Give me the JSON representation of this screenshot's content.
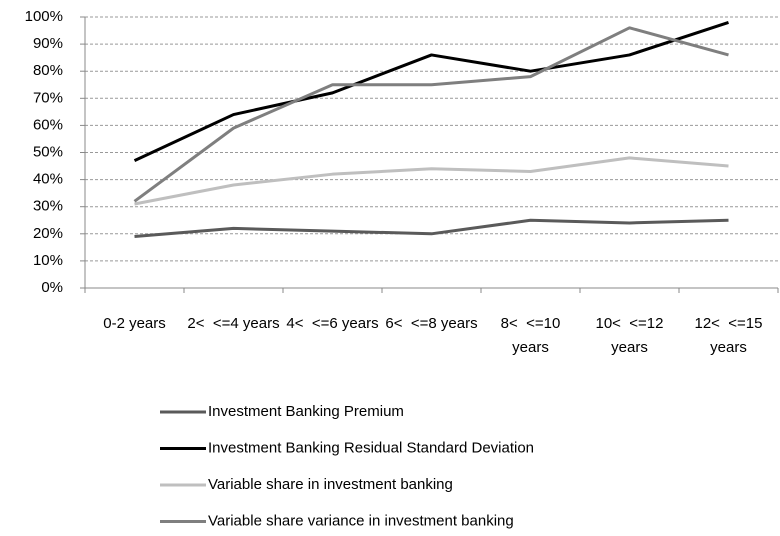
{
  "chart_data": {
    "type": "line",
    "categories": [
      "0-2 years",
      "2<  <=4 years",
      "4<  <=6 years",
      "6<  <=8 years",
      "8<  <=10 years",
      "10<  <=12 years",
      "12<  <=15 years"
    ],
    "series": [
      {
        "name": "Investment Banking Premium",
        "color": "#5a5a5a",
        "values": [
          19,
          22,
          21,
          20,
          25,
          24,
          25
        ]
      },
      {
        "name": "Investment Banking Residual Standard Deviation",
        "color": "#000000",
        "values": [
          47,
          64,
          72,
          86,
          80,
          86,
          98
        ]
      },
      {
        "name": "Variable share in investment banking",
        "color": "#bfbfbf",
        "values": [
          31,
          38,
          42,
          44,
          43,
          48,
          45
        ]
      },
      {
        "name": "Variable share variance in investment banking",
        "color": "#7f7f7f",
        "values": [
          32,
          59,
          75,
          75,
          78,
          96,
          86
        ]
      }
    ],
    "ylim": [
      0,
      100
    ],
    "yticks": [
      {
        "value": 0,
        "label": "0%"
      },
      {
        "value": 10,
        "label": "10%"
      },
      {
        "value": 20,
        "label": "20%"
      },
      {
        "value": 30,
        "label": "30%"
      },
      {
        "value": 40,
        "label": "40%"
      },
      {
        "value": 50,
        "label": "50%"
      },
      {
        "value": 60,
        "label": "60%"
      },
      {
        "value": 70,
        "label": "70%"
      },
      {
        "value": 80,
        "label": "80%"
      },
      {
        "value": 90,
        "label": "90%"
      },
      {
        "value": 100,
        "label": "100%"
      }
    ],
    "grid": true,
    "legend": "bottom"
  }
}
